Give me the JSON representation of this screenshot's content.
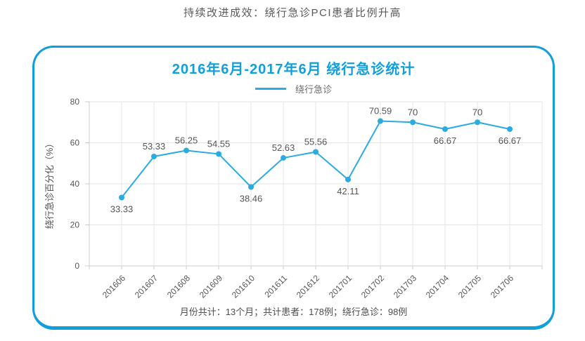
{
  "page_title": "持续改进成效：绕行急诊PCI患者比例升高",
  "card": {
    "title": "2016年6月-2017年6月 绕行急诊统计",
    "legend_label": "绕行急诊",
    "footer": "月份共计：13个月；共计患者：178例；绕行急诊：98例"
  },
  "colors": {
    "accent": "#109fdd",
    "line": "#2aabe2",
    "grid": "#e4e4e4",
    "axis": "#cccccc",
    "text": "#555555"
  },
  "chart_data": {
    "type": "line",
    "title": "2016年6月-2017年6月 绕行急诊统计",
    "categories": [
      "201606",
      "201607",
      "201608",
      "201609",
      "201610",
      "201611",
      "201612",
      "201701",
      "201702",
      "201703",
      "201704",
      "201705",
      "201706"
    ],
    "series": [
      {
        "name": "绕行急诊",
        "values": [
          33.33,
          53.33,
          56.25,
          54.55,
          38.46,
          52.63,
          55.56,
          42.11,
          70.59,
          70,
          66.67,
          70,
          66.67
        ]
      }
    ],
    "xlabel": "",
    "ylabel": "绕行急诊百分化（%）",
    "ylim": [
      0,
      80
    ],
    "yticks": [
      0,
      20,
      40,
      60,
      80
    ],
    "grid": true,
    "legend_position": "top",
    "label_positions": [
      "below",
      "above",
      "above",
      "above",
      "below",
      "above",
      "above",
      "below",
      "above",
      "above",
      "below",
      "above",
      "below"
    ]
  }
}
